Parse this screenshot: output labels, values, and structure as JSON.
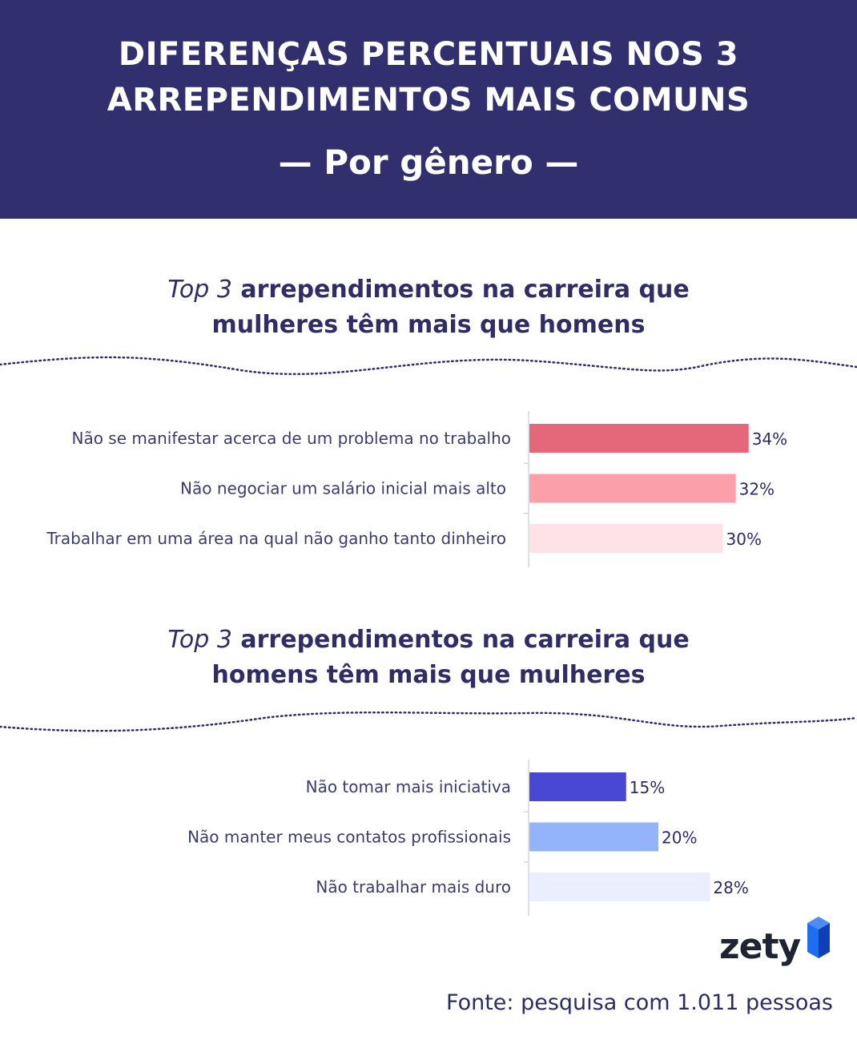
{
  "header": {
    "title_line1": "DIFERENÇAS PERCENTUAIS NOS 3",
    "title_line2": "ARREPENDIMENTOS MAIS COMUNS",
    "subtitle": "— Por gênero —"
  },
  "sections": [
    {
      "title_italic": "Top 3",
      "title_line1_rest": " arrependimentos na carreira que",
      "title_line2": "mulheres têm mais que homens"
    },
    {
      "title_italic": "Top 3",
      "title_line1_rest": " arrependimentos na carreira que",
      "title_line2": "homens têm mais que mulheres"
    }
  ],
  "chart_data": [
    {
      "type": "bar",
      "orientation": "horizontal",
      "title": "Top 3 arrependimentos na carreira que mulheres têm mais que homens",
      "categories": [
        "Não se manifestar acerca de um problema no trabalho",
        "Não negociar um salário inicial mais alto",
        "Trabalhar em uma área na qual não ganho tanto dinheiro"
      ],
      "values": [
        34,
        32,
        30
      ],
      "value_labels": [
        "34%",
        "32%",
        "30%"
      ],
      "bar_colors": [
        "#e4677a",
        "#fb9faa",
        "#fde3e8"
      ],
      "xlim": [
        0,
        100
      ],
      "grid": false,
      "legend": "none"
    },
    {
      "type": "bar",
      "orientation": "horizontal",
      "title": "Top 3 arrependimentos na carreira que homens têm mais que mulheres",
      "categories": [
        "Não tomar mais iniciativa",
        "Não manter meus contatos profissionais",
        "Não trabalhar mais duro"
      ],
      "values": [
        15,
        20,
        28
      ],
      "value_labels": [
        "15%",
        "20%",
        "28%"
      ],
      "bar_colors": [
        "#4847d3",
        "#93b4fa",
        "#ebeefc"
      ],
      "xlim": [
        0,
        100
      ],
      "grid": false,
      "legend": "none"
    }
  ],
  "logo": {
    "text": "zety",
    "icon": "zety-logo-icon",
    "colors": [
      "#1d6ff2",
      "#0f3fb8"
    ]
  },
  "source": "Fonte: pesquisa com 1.011 pessoas"
}
